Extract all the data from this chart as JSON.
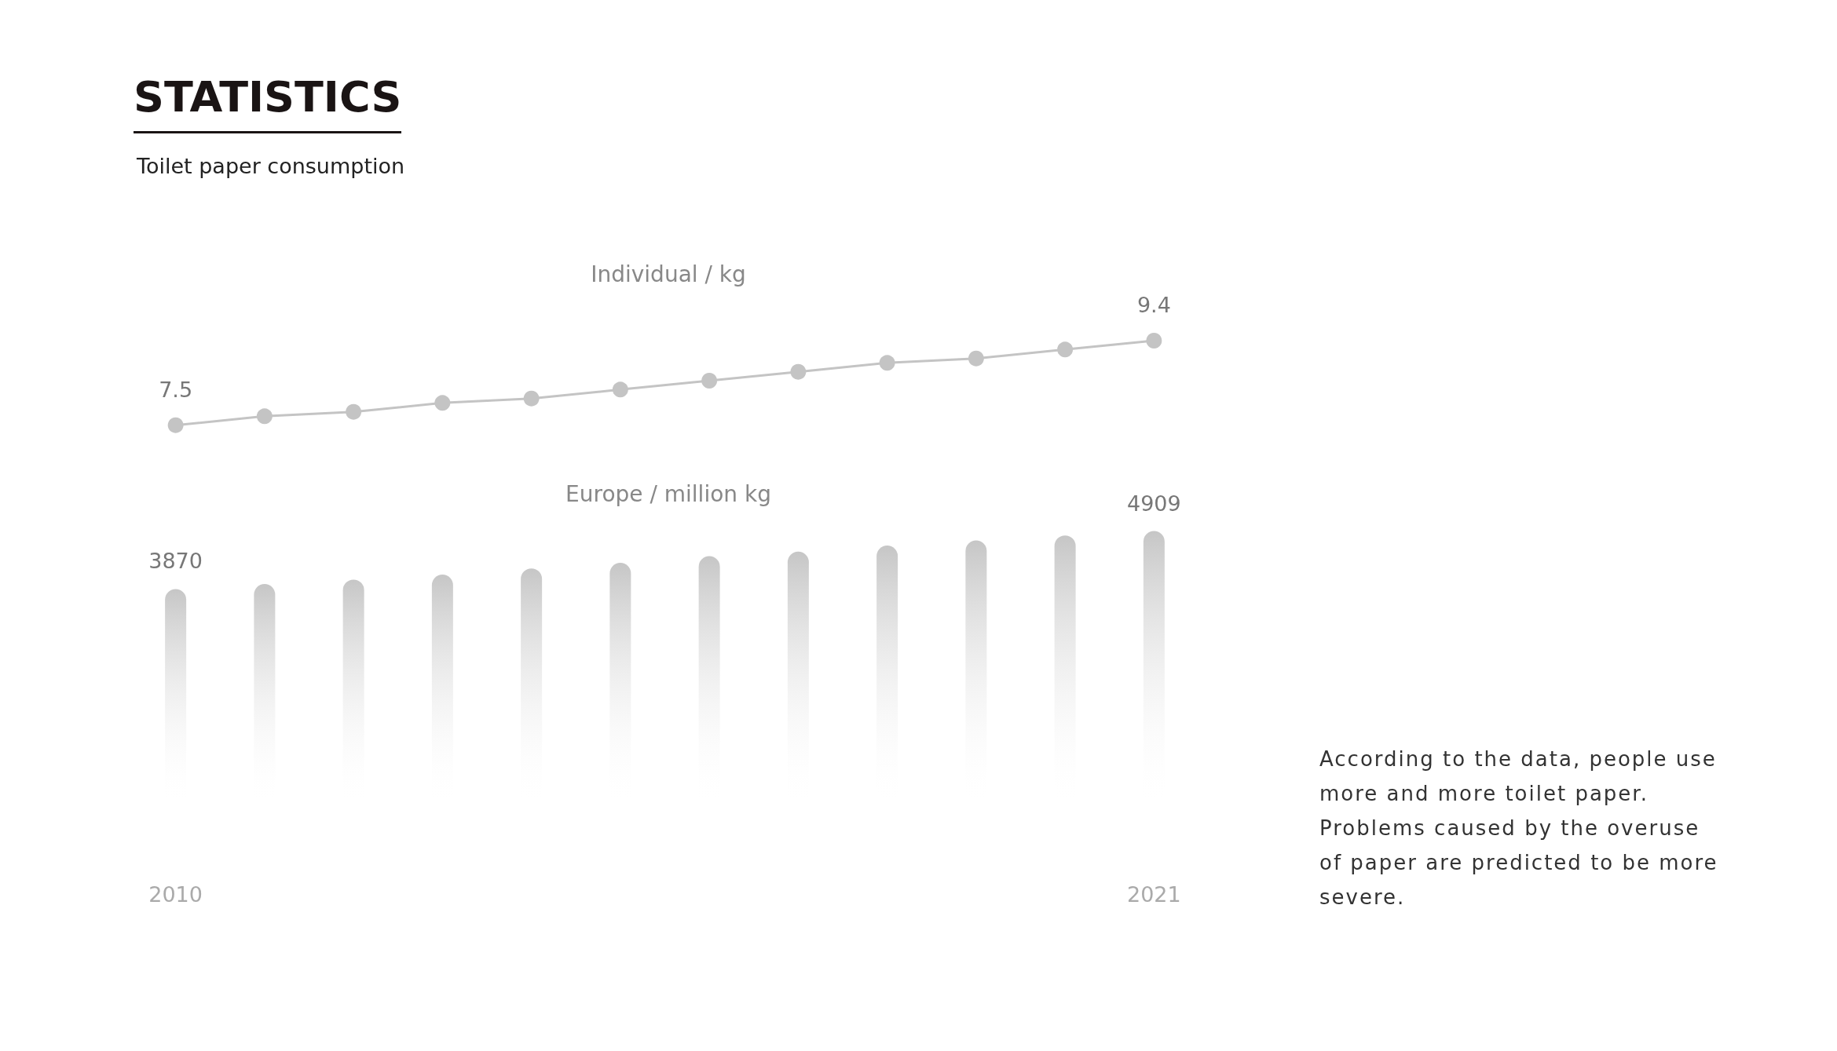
{
  "chart_data": [
    {
      "type": "line",
      "title": "Individual / kg",
      "categories": [
        null,
        null,
        null,
        null,
        null,
        null,
        null,
        null,
        null,
        null,
        null,
        null
      ],
      "values": [
        7.5,
        7.7,
        7.8,
        8.0,
        8.1,
        8.3,
        8.5,
        8.7,
        8.9,
        9.0,
        9.2,
        9.4
      ],
      "value_labels": [
        "7.5",
        null,
        null,
        null,
        null,
        null,
        null,
        null,
        null,
        null,
        null,
        "9.4"
      ],
      "color": "#c4c4c4",
      "marker": "circle",
      "line_style": "solid",
      "tick_labels": false
    },
    {
      "type": "bar",
      "title": "Europe / million kg",
      "categories": [
        "2010",
        null,
        null,
        null,
        null,
        null,
        null,
        null,
        null,
        null,
        null,
        "2021"
      ],
      "values": [
        3870,
        3960,
        4040,
        4130,
        4240,
        4340,
        4460,
        4540,
        4650,
        4740,
        4830,
        4909
      ],
      "value_labels": [
        "3870",
        null,
        null,
        null,
        null,
        null,
        null,
        null,
        null,
        null,
        null,
        "4909"
      ],
      "color": "#c6c6c6",
      "tick_labels": "x"
    },
    {
      "type": "other",
      "title": "STATISTICS",
      "subtitle": "Toilet paper consumption",
      "annotations": [
        "According to the data, people use more and more toilet paper. Problems caused by the overuse of paper are predicted to be more severe."
      ]
    }
  ]
}
